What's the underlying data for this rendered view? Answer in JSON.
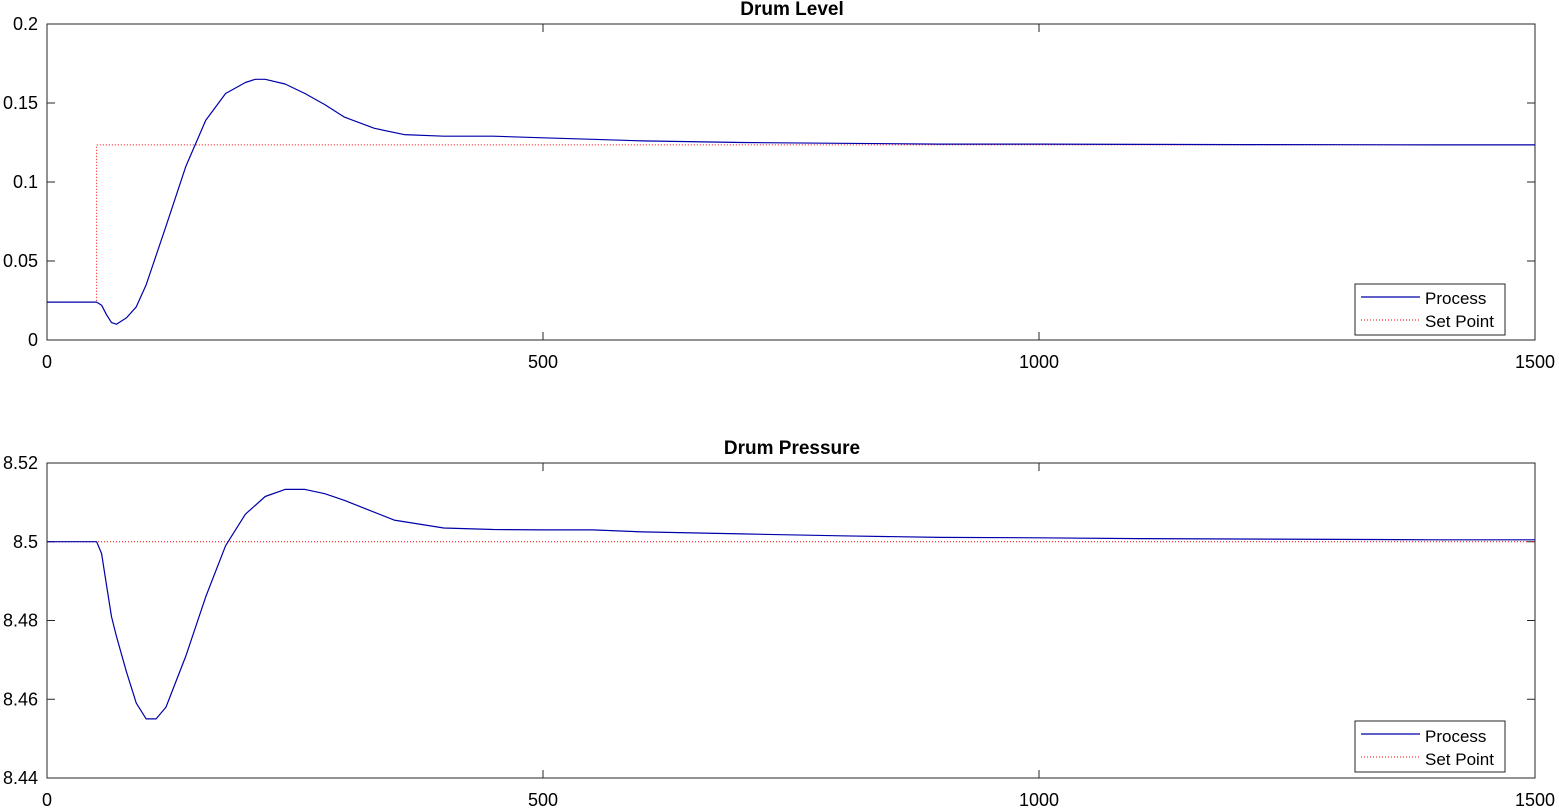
{
  "chart_data": [
    {
      "type": "line",
      "title": "Drum Level",
      "xlim": [
        0,
        1500
      ],
      "ylim": [
        0,
        0.2
      ],
      "xticks": [
        0,
        500,
        1000,
        1500
      ],
      "xtick_labels": [
        "0",
        "500",
        "1000",
        "1500"
      ],
      "yticks": [
        0,
        0.05,
        0.1,
        0.15,
        0.2
      ],
      "ytick_labels": [
        "0",
        "0.05",
        "0.1",
        "0.15",
        "0.2"
      ],
      "grid": false,
      "legend_position": "bottom-right",
      "series": [
        {
          "name": "Process",
          "color": "#0000aa",
          "style": "solid",
          "x": [
            0,
            50,
            55,
            60,
            65,
            70,
            80,
            90,
            100,
            120,
            140,
            160,
            180,
            200,
            210,
            220,
            240,
            260,
            280,
            300,
            330,
            360,
            400,
            450,
            500,
            550,
            600,
            700,
            800,
            900,
            1000,
            1100,
            1200,
            1300,
            1400,
            1500
          ],
          "y": [
            0.024,
            0.024,
            0.022,
            0.016,
            0.011,
            0.01,
            0.014,
            0.021,
            0.035,
            0.072,
            0.11,
            0.139,
            0.156,
            0.163,
            0.165,
            0.165,
            0.162,
            0.156,
            0.149,
            0.141,
            0.134,
            0.13,
            0.129,
            0.129,
            0.128,
            0.127,
            0.126,
            0.125,
            0.1245,
            0.124,
            0.124,
            0.1238,
            0.1237,
            0.1236,
            0.1235,
            0.1235
          ]
        },
        {
          "name": "Set Point",
          "color": "#ff0000",
          "style": "dotted",
          "x": [
            0,
            50,
            50,
            1500
          ],
          "y": [
            0.024,
            0.024,
            0.1235,
            0.1235
          ]
        }
      ]
    },
    {
      "type": "line",
      "title": "Drum Pressure",
      "xlim": [
        0,
        1500
      ],
      "ylim": [
        8.44,
        8.52
      ],
      "xticks": [
        0,
        500,
        1000,
        1500
      ],
      "xtick_labels": [
        "0",
        "500",
        "1000",
        "1500"
      ],
      "yticks": [
        8.44,
        8.46,
        8.48,
        8.5,
        8.52
      ],
      "ytick_labels": [
        "8.44",
        "8.46",
        "8.48",
        "8.5",
        "8.52"
      ],
      "grid": false,
      "legend_position": "bottom-right",
      "series": [
        {
          "name": "Process",
          "color": "#0000aa",
          "style": "solid",
          "x": [
            0,
            50,
            55,
            60,
            65,
            70,
            80,
            90,
            100,
            110,
            120,
            140,
            160,
            180,
            200,
            220,
            240,
            260,
            280,
            300,
            320,
            350,
            400,
            450,
            500,
            550,
            600,
            700,
            800,
            900,
            1000,
            1100,
            1200,
            1300,
            1400,
            1500
          ],
          "y": [
            8.5,
            8.5,
            8.497,
            8.489,
            8.481,
            8.476,
            8.467,
            8.459,
            8.455,
            8.455,
            8.458,
            8.471,
            8.486,
            8.499,
            8.507,
            8.5115,
            8.5133,
            8.5133,
            8.5122,
            8.5105,
            8.5085,
            8.5055,
            8.5035,
            8.5031,
            8.503,
            8.503,
            8.5025,
            8.502,
            8.5015,
            8.5011,
            8.501,
            8.5008,
            8.5007,
            8.5006,
            8.5005,
            8.5005
          ]
        },
        {
          "name": "Set Point",
          "color": "#ff0000",
          "style": "dotted",
          "x": [
            0,
            1500
          ],
          "y": [
            8.5,
            8.5
          ]
        }
      ]
    }
  ]
}
